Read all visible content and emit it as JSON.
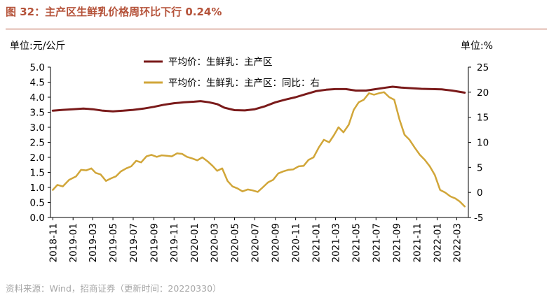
{
  "figure": {
    "title": "图 32：主产区生鲜乳价格周环比下行 0.24%",
    "source": "资料来源：Wind，招商证券（更新时间：20220330）",
    "title_color": "#b5533a"
  },
  "chart_data": {
    "type": "line",
    "left_axis": {
      "label": "单位:元/公斤",
      "ylim": [
        0.0,
        5.0
      ],
      "ticks": [
        "0.0",
        "0.5",
        "1.0",
        "1.5",
        "2.0",
        "2.5",
        "3.0",
        "3.5",
        "4.0",
        "4.5",
        "5.0"
      ]
    },
    "right_axis": {
      "label": "单位:%",
      "ylim": [
        -5,
        25
      ],
      "ticks": [
        "-5",
        "0",
        "5",
        "10",
        "15",
        "20",
        "25"
      ]
    },
    "x_tick_labels": [
      "2018-11",
      "2019-01",
      "2019-03",
      "2019-05",
      "2019-07",
      "2019-09",
      "2019-11",
      "2020-01",
      "2020-03",
      "2020-05",
      "2020-07",
      "2020-09",
      "2020-11",
      "2021-01",
      "2021-03",
      "2021-05",
      "2021-07",
      "2021-09",
      "2021-11",
      "2022-01",
      "2022-03"
    ],
    "grid": false,
    "legend_position": "top-center",
    "series": [
      {
        "name": "平均价：生鲜乳：主产区",
        "axis": "left",
        "color": "#7a1a1a",
        "x": [
          "2018-11-01",
          "2018-12-01",
          "2019-01-01",
          "2019-02-01",
          "2019-03-01",
          "2019-04-01",
          "2019-05-01",
          "2019-06-01",
          "2019-07-01",
          "2019-08-01",
          "2019-09-01",
          "2019-10-01",
          "2019-11-01",
          "2019-12-01",
          "2020-01-01",
          "2020-01-20",
          "2020-02-15",
          "2020-03-10",
          "2020-04-01",
          "2020-05-01",
          "2020-06-01",
          "2020-07-01",
          "2020-08-01",
          "2020-09-01",
          "2020-10-01",
          "2020-11-01",
          "2020-12-01",
          "2021-01-01",
          "2021-02-01",
          "2021-03-01",
          "2021-04-01",
          "2021-05-01",
          "2021-06-01",
          "2021-07-01",
          "2021-08-01",
          "2021-08-20",
          "2021-09-15",
          "2021-10-15",
          "2021-11-15",
          "2021-12-15",
          "2022-01-15",
          "2022-02-15",
          "2022-03-25"
        ],
        "values": [
          3.55,
          3.58,
          3.6,
          3.62,
          3.6,
          3.55,
          3.53,
          3.55,
          3.58,
          3.62,
          3.68,
          3.75,
          3.8,
          3.83,
          3.85,
          3.87,
          3.83,
          3.77,
          3.65,
          3.57,
          3.56,
          3.6,
          3.7,
          3.83,
          3.92,
          4.0,
          4.1,
          4.2,
          4.25,
          4.27,
          4.27,
          4.22,
          4.22,
          4.27,
          4.32,
          4.35,
          4.32,
          4.3,
          4.28,
          4.27,
          4.26,
          4.22,
          4.15
        ]
      },
      {
        "name": "平均价：生鲜乳：主产区：同比：右",
        "axis": "right",
        "color": "#d1a639",
        "x": [
          "2018-11-01",
          "2018-11-15",
          "2018-12-01",
          "2018-12-20",
          "2019-01-10",
          "2019-01-25",
          "2019-02-10",
          "2019-02-25",
          "2019-03-10",
          "2019-03-25",
          "2019-04-10",
          "2019-04-25",
          "2019-05-10",
          "2019-05-25",
          "2019-06-10",
          "2019-06-25",
          "2019-07-10",
          "2019-07-25",
          "2019-08-10",
          "2019-08-25",
          "2019-09-10",
          "2019-09-25",
          "2019-10-10",
          "2019-10-25",
          "2019-11-10",
          "2019-11-25",
          "2019-12-10",
          "2019-12-25",
          "2020-01-10",
          "2020-01-25",
          "2020-02-10",
          "2020-02-25",
          "2020-03-10",
          "2020-03-25",
          "2020-04-10",
          "2020-04-25",
          "2020-05-10",
          "2020-05-25",
          "2020-06-10",
          "2020-06-25",
          "2020-07-10",
          "2020-07-25",
          "2020-08-10",
          "2020-08-25",
          "2020-09-10",
          "2020-09-25",
          "2020-10-10",
          "2020-10-25",
          "2020-11-10",
          "2020-11-25",
          "2020-12-10",
          "2020-12-25",
          "2021-01-10",
          "2021-01-25",
          "2021-02-10",
          "2021-02-25",
          "2021-03-10",
          "2021-03-25",
          "2021-04-10",
          "2021-04-25",
          "2021-05-10",
          "2021-05-25",
          "2021-06-10",
          "2021-06-25",
          "2021-07-10",
          "2021-07-25",
          "2021-08-10",
          "2021-08-25",
          "2021-09-10",
          "2021-09-25",
          "2021-10-10",
          "2021-10-25",
          "2021-11-10",
          "2021-11-25",
          "2021-12-10",
          "2021-12-25",
          "2022-01-10",
          "2022-01-25",
          "2022-02-10",
          "2022-02-25",
          "2022-03-10",
          "2022-03-25"
        ],
        "values": [
          0.5,
          1.5,
          1.2,
          2.5,
          3.2,
          4.5,
          4.4,
          4.8,
          3.9,
          3.6,
          2.3,
          2.8,
          3.2,
          4.2,
          4.8,
          5.2,
          6.3,
          6.0,
          7.2,
          7.5,
          7.1,
          7.4,
          7.3,
          7.2,
          7.8,
          7.7,
          7.1,
          6.8,
          6.4,
          7.0,
          6.2,
          5.3,
          4.3,
          4.8,
          2.3,
          1.2,
          0.8,
          0.2,
          0.6,
          0.4,
          0.1,
          1.0,
          2.0,
          2.5,
          3.8,
          4.2,
          4.5,
          4.6,
          5.2,
          5.3,
          6.5,
          7.0,
          9.0,
          10.5,
          10.0,
          11.5,
          13.0,
          12.0,
          13.5,
          16.5,
          18.0,
          18.5,
          19.8,
          19.5,
          19.8,
          20.0,
          19.0,
          18.5,
          14.5,
          11.5,
          10.5,
          9.0,
          7.5,
          6.5,
          5.2,
          3.5,
          0.5,
          0.0,
          -0.8,
          -1.2,
          -1.8,
          -2.8
        ]
      }
    ]
  }
}
